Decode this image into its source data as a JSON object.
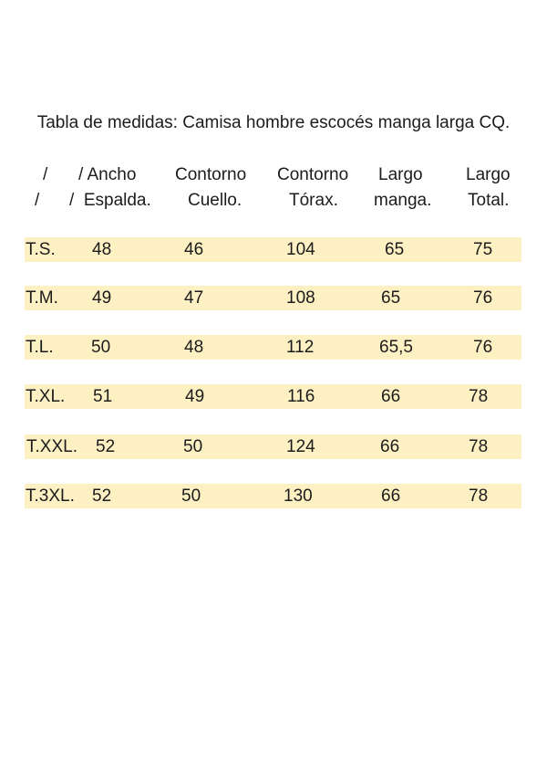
{
  "title": "Tabla de medidas: Camisa hombre escocés manga larga CQ.",
  "header": {
    "line1": [
      "/",
      "/ Ancho",
      "Contorno",
      "Contorno",
      "Largo",
      "Largo"
    ],
    "line2": [
      "/",
      "/  Espalda.",
      "Cuello.",
      "Tórax.",
      "manga.",
      "Total."
    ]
  },
  "rows": [
    [
      "T.S.",
      "48",
      "46",
      "104",
      "65",
      "75"
    ],
    [
      "T.M.",
      "49",
      "47",
      "108",
      "65",
      "76"
    ],
    [
      "T.L.",
      "50",
      "48",
      "112",
      "65,5",
      "76"
    ],
    [
      "T.XL.",
      "51",
      "49",
      "116",
      "66",
      "78"
    ],
    [
      "T.XXL.",
      "52",
      "50",
      "124",
      "66",
      "78"
    ],
    [
      "T.3XL.",
      "52",
      "50",
      "130",
      "66",
      "78"
    ]
  ],
  "colors": {
    "row_highlight": "#fdf0c3",
    "text": "#1c1c1c",
    "background": "#ffffff"
  }
}
